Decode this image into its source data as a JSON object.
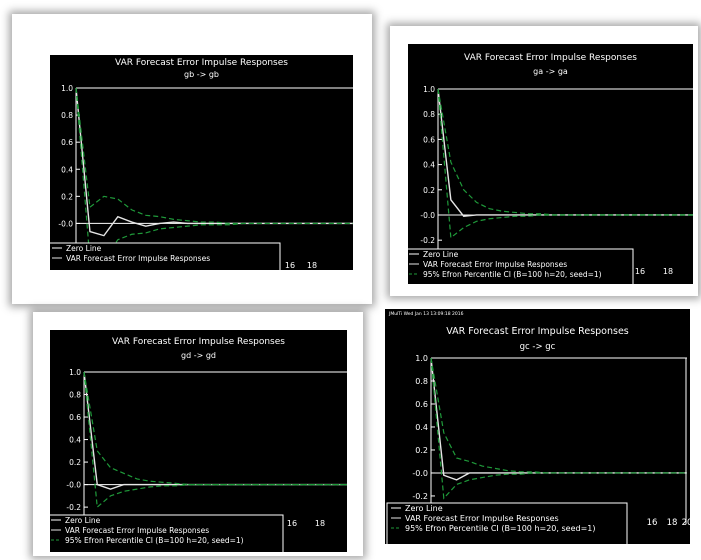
{
  "colors": {
    "background": "#000000",
    "zero_line": "#ffffff",
    "response": "#e6e6e6",
    "ci": "#1f9a3a",
    "axes": "#ffffff"
  },
  "chart_data": [
    {
      "type": "line",
      "title": "VAR Forecast Error Impulse Responses",
      "subtitle": "gb -> gb",
      "header": "",
      "x": [
        0,
        1,
        2,
        3,
        4,
        5,
        6,
        7,
        8,
        9,
        10,
        11,
        12,
        13,
        14,
        15,
        16,
        17,
        18,
        19,
        20
      ],
      "x_tick_labels": [
        "16",
        "18"
      ],
      "y_tick_labels": [
        "1.0",
        "0.8",
        "0.6",
        "0.4",
        "0.2",
        "-0.0",
        "-0.2"
      ],
      "ylim": [
        -0.27,
        1.0
      ],
      "xlim": [
        0,
        20
      ],
      "series": [
        {
          "name": "Zero Line",
          "values": [
            0,
            0,
            0,
            0,
            0,
            0,
            0,
            0,
            0,
            0,
            0,
            0,
            0,
            0,
            0,
            0,
            0,
            0,
            0,
            0,
            0
          ]
        },
        {
          "name": "VAR Forecast Error Impulse Responses",
          "values": [
            1.0,
            -0.06,
            -0.09,
            0.05,
            0.01,
            -0.02,
            0.0,
            0.01,
            0.0,
            0.0,
            0.0,
            0.0,
            0.0,
            0.0,
            0.0,
            0.0,
            0.0,
            0.0,
            0.0,
            0.0,
            0.0
          ]
        },
        {
          "name": "95% Efron Percentile CI upper",
          "values": [
            1.0,
            0.12,
            0.2,
            0.18,
            0.1,
            0.06,
            0.05,
            0.03,
            0.02,
            0.01,
            0.01,
            0.0,
            0.0,
            0.0,
            0.0,
            0.0,
            0.0,
            0.0,
            0.0,
            0.0,
            0.0
          ]
        },
        {
          "name": "95% Efron Percentile CI lower",
          "values": [
            1.0,
            -0.27,
            -0.27,
            -0.12,
            -0.08,
            -0.07,
            -0.04,
            -0.03,
            -0.02,
            -0.01,
            -0.01,
            -0.01,
            0.0,
            0.0,
            0.0,
            0.0,
            0.0,
            0.0,
            0.0,
            0.0,
            0.0
          ]
        }
      ],
      "legend": [
        "Zero Line",
        "VAR Forecast Error Impulse Responses"
      ]
    },
    {
      "type": "line",
      "title": "VAR Forecast Error Impulse Responses",
      "subtitle": "ga -> ga",
      "header": "",
      "x": [
        0,
        1,
        2,
        3,
        4,
        5,
        6,
        7,
        8,
        9,
        10,
        11,
        12,
        13,
        14,
        15,
        16,
        17,
        18,
        19,
        20
      ],
      "x_tick_labels": [
        "16",
        "18"
      ],
      "y_tick_labels": [
        "1.0",
        "0.8",
        "0.6",
        "0.4",
        "0.2",
        "-0.0",
        "-0.2"
      ],
      "ylim": [
        -0.27,
        1.0
      ],
      "xlim": [
        0,
        20
      ],
      "series": [
        {
          "name": "Zero Line",
          "values": [
            0,
            0,
            0,
            0,
            0,
            0,
            0,
            0,
            0,
            0,
            0,
            0,
            0,
            0,
            0,
            0,
            0,
            0,
            0,
            0,
            0
          ]
        },
        {
          "name": "VAR Forecast Error Impulse Responses",
          "values": [
            1.0,
            0.12,
            -0.01,
            0.0,
            0.0,
            0.0,
            0.0,
            0.0,
            0.0,
            0.0,
            0.0,
            0.0,
            0.0,
            0.0,
            0.0,
            0.0,
            0.0,
            0.0,
            0.0,
            0.0,
            0.0
          ]
        },
        {
          "name": "95% Efron Percentile CI upper",
          "values": [
            1.0,
            0.42,
            0.2,
            0.1,
            0.05,
            0.03,
            0.02,
            0.01,
            0.01,
            0.0,
            0.0,
            0.0,
            0.0,
            0.0,
            0.0,
            0.0,
            0.0,
            0.0,
            0.0,
            0.0,
            0.0
          ]
        },
        {
          "name": "95% Efron Percentile CI lower",
          "values": [
            1.0,
            -0.18,
            -0.1,
            -0.05,
            -0.03,
            -0.02,
            -0.01,
            -0.01,
            0.0,
            0.0,
            0.0,
            0.0,
            0.0,
            0.0,
            0.0,
            0.0,
            0.0,
            0.0,
            0.0,
            0.0,
            0.0
          ]
        }
      ],
      "legend": [
        "Zero Line",
        "VAR Forecast Error Impulse Responses",
        "95% Efron Percentile CI (B=100 h=20, seed=1)"
      ]
    },
    {
      "type": "line",
      "title": "VAR Forecast Error Impulse Responses",
      "subtitle": "gd -> gd",
      "header": "",
      "x": [
        0,
        1,
        2,
        3,
        4,
        5,
        6,
        7,
        8,
        9,
        10,
        11,
        12,
        13,
        14,
        15,
        16,
        17,
        18,
        19,
        20
      ],
      "x_tick_labels": [
        "16",
        "18"
      ],
      "y_tick_labels": [
        "1.0",
        "0.8",
        "0.6",
        "0.4",
        "0.2",
        "-0.0",
        "-0.2"
      ],
      "ylim": [
        -0.27,
        1.0
      ],
      "xlim": [
        0,
        20
      ],
      "series": [
        {
          "name": "Zero Line",
          "values": [
            0,
            0,
            0,
            0,
            0,
            0,
            0,
            0,
            0,
            0,
            0,
            0,
            0,
            0,
            0,
            0,
            0,
            0,
            0,
            0,
            0
          ]
        },
        {
          "name": "VAR Forecast Error Impulse Responses",
          "values": [
            1.0,
            0.0,
            -0.04,
            0.0,
            0.0,
            0.0,
            0.0,
            0.0,
            0.0,
            0.0,
            0.0,
            0.0,
            0.0,
            0.0,
            0.0,
            0.0,
            0.0,
            0.0,
            0.0,
            0.0,
            0.0
          ]
        },
        {
          "name": "95% Efron Percentile CI upper",
          "values": [
            1.0,
            0.3,
            0.15,
            0.1,
            0.05,
            0.03,
            0.02,
            0.01,
            0.0,
            0.0,
            0.0,
            0.0,
            0.0,
            0.0,
            0.0,
            0.0,
            0.0,
            0.0,
            0.0,
            0.0,
            0.0
          ]
        },
        {
          "name": "95% Efron Percentile CI lower",
          "values": [
            1.0,
            -0.2,
            -0.1,
            -0.06,
            -0.04,
            -0.02,
            -0.01,
            -0.01,
            0.0,
            0.0,
            0.0,
            0.0,
            0.0,
            0.0,
            0.0,
            0.0,
            0.0,
            0.0,
            0.0,
            0.0,
            0.0
          ]
        }
      ],
      "legend": [
        "Zero Line",
        "VAR Forecast Error Impulse Responses",
        "95% Efron Percentile CI (B=100 h=20, seed=1)"
      ]
    },
    {
      "type": "line",
      "title": "VAR Forecast Error Impulse Responses",
      "subtitle": "gc -> gc",
      "header": "JMulTi   Wed Jan 13 13:09:18 2016",
      "x": [
        0,
        1,
        2,
        3,
        4,
        5,
        6,
        7,
        8,
        9,
        10,
        11,
        12,
        13,
        14,
        15,
        16,
        17,
        18,
        19,
        20
      ],
      "x_tick_labels": [
        "16",
        "18",
        "20"
      ],
      "y_tick_labels": [
        "1.0",
        "0.8",
        "0.6",
        "0.4",
        "0.2",
        "-0.0",
        "-0.2"
      ],
      "ylim": [
        -0.27,
        1.0
      ],
      "xlim": [
        0,
        20
      ],
      "series": [
        {
          "name": "Zero Line",
          "values": [
            0,
            0,
            0,
            0,
            0,
            0,
            0,
            0,
            0,
            0,
            0,
            0,
            0,
            0,
            0,
            0,
            0,
            0,
            0,
            0,
            0
          ]
        },
        {
          "name": "VAR Forecast Error Impulse Responses",
          "values": [
            1.0,
            -0.02,
            -0.06,
            0.0,
            0.0,
            0.0,
            0.0,
            0.0,
            0.0,
            0.0,
            0.0,
            0.0,
            0.0,
            0.0,
            0.0,
            0.0,
            0.0,
            0.0,
            0.0,
            0.0,
            0.0
          ]
        },
        {
          "name": "95% Efron Percentile CI upper",
          "values": [
            1.0,
            0.35,
            0.13,
            0.1,
            0.06,
            0.04,
            0.02,
            0.01,
            0.01,
            0.0,
            0.0,
            0.0,
            0.0,
            0.0,
            0.0,
            0.0,
            0.0,
            0.0,
            0.0,
            0.0,
            0.0
          ]
        },
        {
          "name": "95% Efron Percentile CI lower",
          "values": [
            1.0,
            -0.22,
            -0.1,
            -0.06,
            -0.04,
            -0.02,
            -0.01,
            -0.01,
            0.0,
            0.0,
            0.0,
            0.0,
            0.0,
            0.0,
            0.0,
            0.0,
            0.0,
            0.0,
            0.0,
            0.0,
            0.0
          ]
        }
      ],
      "legend": [
        "Zero Line",
        "VAR Forecast Error Impulse Responses",
        "95% Efron Percentile CI (B=100 h=20, seed=1)"
      ]
    }
  ]
}
